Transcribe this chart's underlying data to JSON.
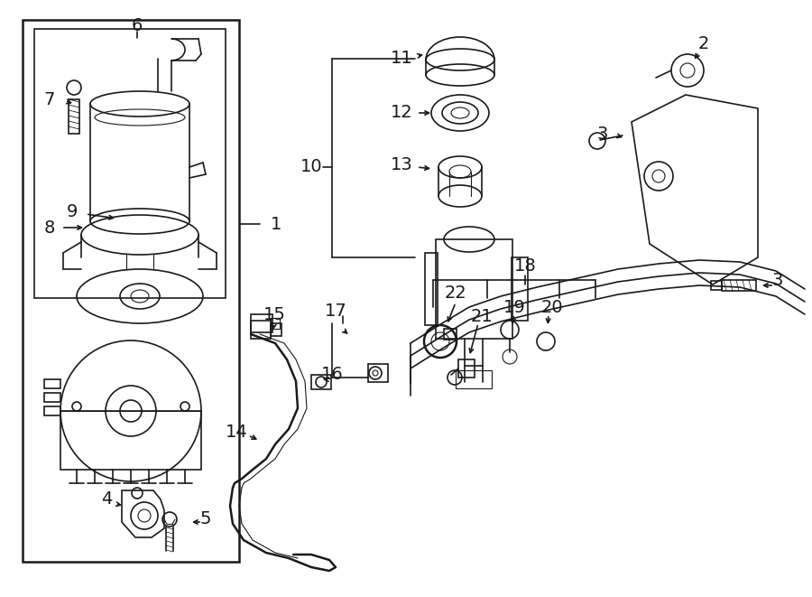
{
  "bg_color": "#ffffff",
  "line_color": "#1a1a1a",
  "fig_width": 9.0,
  "fig_height": 6.61,
  "dpi": 100
}
